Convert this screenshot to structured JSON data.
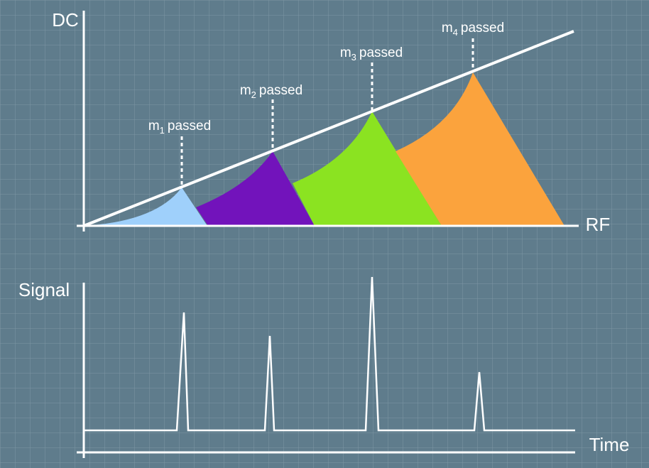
{
  "axes": {
    "dc": "DC",
    "rf": "RF",
    "signal": "Signal",
    "time": "Time"
  },
  "annotations": [
    {
      "base": "m",
      "subscript": "1",
      "suffix": "passed"
    },
    {
      "base": "m",
      "subscript": "2",
      "suffix": "passed"
    },
    {
      "base": "m",
      "subscript": "3",
      "suffix": "passed"
    },
    {
      "base": "m",
      "subscript": "4",
      "suffix": "passed"
    }
  ]
}
